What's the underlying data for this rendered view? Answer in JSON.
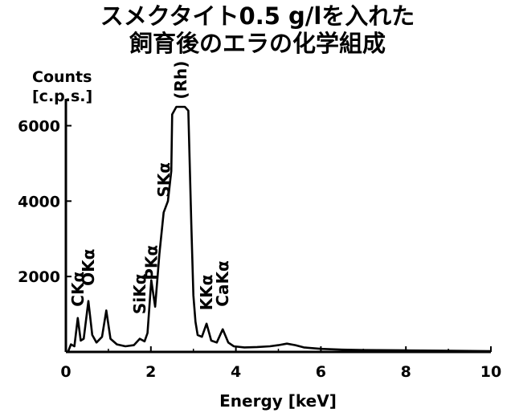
{
  "chart_data": {
    "type": "line",
    "title_line1": "スメクタイト0.5 g/lを入れた",
    "title_line2": "飼育後のエラの化学組成",
    "ylabel_line1": "Counts",
    "ylabel_line2": "[c.p.s.]",
    "xlabel": "Energy [keV]",
    "xlim": [
      0,
      10
    ],
    "ylim": [
      0,
      6500
    ],
    "xticks": [
      "0",
      "2",
      "4",
      "6",
      "8",
      "10"
    ],
    "yticks": [
      "2000",
      "4000",
      "6000"
    ],
    "grid": false,
    "annotations": [
      {
        "text": "CKα",
        "x": 0.28,
        "y": 1200
      },
      {
        "text": "OKα",
        "x": 0.53,
        "y": 1750
      },
      {
        "text": "SiKα",
        "x": 1.74,
        "y": 1000
      },
      {
        "text": "PKα",
        "x": 2.01,
        "y": 1900
      },
      {
        "text": "SKα",
        "x": 2.31,
        "y": 4100
      },
      {
        "text": "(Rh)",
        "x": 2.7,
        "y": 6700
      },
      {
        "text": "KKα",
        "x": 3.31,
        "y": 1100
      },
      {
        "text": "CaKα",
        "x": 3.69,
        "y": 1200
      }
    ],
    "series": [
      {
        "x": [
          0.05,
          0.12,
          0.2,
          0.28,
          0.35,
          0.42,
          0.53,
          0.62,
          0.72,
          0.85,
          0.95,
          1.05,
          1.2,
          1.4,
          1.6,
          1.74,
          1.85,
          1.92,
          2.01,
          2.1,
          2.2,
          2.3,
          2.4,
          2.48,
          2.5,
          2.6,
          2.7,
          2.8,
          2.88,
          2.95,
          3.0,
          3.05,
          3.1,
          3.2,
          3.31,
          3.42,
          3.55,
          3.69,
          3.82,
          3.95,
          4.2,
          4.5,
          4.8,
          5.0,
          5.2,
          5.4,
          5.6,
          6.0,
          6.5,
          7.0,
          8.0,
          9.0,
          10.0
        ],
        "y": [
          0,
          200,
          150,
          900,
          300,
          350,
          1350,
          450,
          250,
          400,
          1100,
          350,
          200,
          150,
          180,
          350,
          280,
          500,
          1900,
          1200,
          2600,
          3700,
          4000,
          4800,
          6300,
          6500,
          6500,
          6500,
          6400,
          3400,
          1500,
          800,
          450,
          400,
          750,
          300,
          250,
          600,
          250,
          150,
          120,
          130,
          150,
          180,
          220,
          180,
          120,
          80,
          60,
          50,
          40,
          30,
          20
        ]
      }
    ]
  }
}
